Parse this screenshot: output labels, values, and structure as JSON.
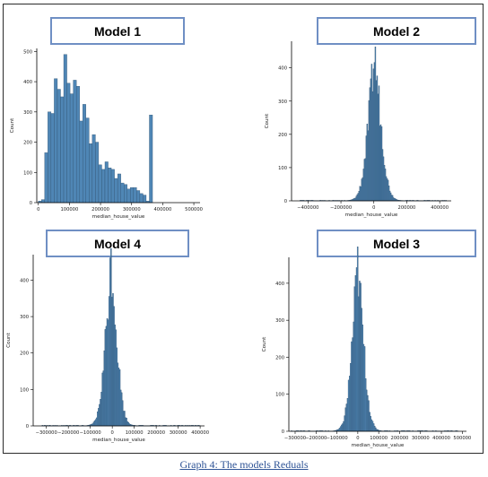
{
  "caption": "Graph 4: The models Reduals",
  "chart_data": [
    {
      "type": "bar",
      "title": "Model 1",
      "xlabel": "median_house_value",
      "ylabel": "Count",
      "xlim": [
        -5000,
        520000
      ],
      "ylim": [
        0,
        510
      ],
      "xticks": [
        0,
        100000,
        200000,
        300000,
        400000,
        500000
      ],
      "xtick_labels": [
        "0",
        "100000",
        "200000",
        "300000",
        "400000",
        "500000"
      ],
      "yticks": [
        0,
        100,
        200,
        300,
        400,
        500
      ],
      "bins_start": 0,
      "bin_width": 10200,
      "values": [
        5,
        10,
        165,
        300,
        295,
        410,
        375,
        350,
        490,
        395,
        360,
        405,
        385,
        270,
        325,
        280,
        195,
        225,
        200,
        125,
        110,
        135,
        115,
        110,
        80,
        95,
        65,
        60,
        45,
        50,
        50,
        40,
        30,
        25,
        5,
        290
      ],
      "color": "#4f86b5"
    },
    {
      "type": "bar",
      "title": "Model 2",
      "xlabel": "median_house_value",
      "ylabel": "Count",
      "xlim": [
        -500000,
        470000
      ],
      "ylim": [
        0,
        480
      ],
      "xticks": [
        -400000,
        -200000,
        0,
        200000,
        400000
      ],
      "xtick_labels": [
        "−400000",
        "−200000",
        "0",
        "200000",
        "400000"
      ],
      "yticks": [
        0,
        100,
        200,
        300,
        400
      ],
      "center": 5000,
      "peak": 440,
      "spread": 42000,
      "range": [
        -450000,
        440000
      ],
      "bin_width": 5500,
      "color": "#4f86b5"
    },
    {
      "type": "bar",
      "title": "Model 4",
      "xlabel": "median_house_value",
      "ylabel": "Count",
      "xlim": [
        -360000,
        420000
      ],
      "ylim": [
        0,
        470
      ],
      "xticks": [
        -300000,
        -200000,
        -100000,
        0,
        100000,
        200000,
        300000,
        400000
      ],
      "xtick_labels": [
        "−300000",
        "−200000",
        "−100000",
        "0",
        "100000",
        "200000",
        "300000",
        "400000"
      ],
      "yticks": [
        0,
        100,
        200,
        300,
        400
      ],
      "center": -5000,
      "peak": 455,
      "spread": 28000,
      "range": [
        -320000,
        400000
      ],
      "bin_width": 4400,
      "color": "#4f86b5"
    },
    {
      "type": "bar",
      "title": "Model 3",
      "xlabel": "median_house_value",
      "ylabel": "Count",
      "xlim": [
        -330000,
        520000
      ],
      "ylim": [
        0,
        470
      ],
      "xticks": [
        -300000,
        -200000,
        -100000,
        0,
        100000,
        200000,
        300000,
        400000,
        500000
      ],
      "xtick_labels": [
        "−300000",
        "−200000",
        "−100000",
        "0",
        "100000",
        "200000",
        "300000",
        "400000",
        "500000"
      ],
      "yticks": [
        0,
        100,
        200,
        300,
        400
      ],
      "center": 0,
      "peak": 450,
      "spread": 30000,
      "range": [
        -320000,
        480000
      ],
      "bin_width": 4800,
      "color": "#4f86b5"
    }
  ]
}
